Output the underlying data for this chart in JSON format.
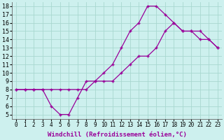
{
  "xlabel": "Windchill (Refroidissement éolien,°C)",
  "background_color": "#cdf0ee",
  "grid_color": "#a8d8d0",
  "line_color": "#990099",
  "marker_color": "#990099",
  "xlim": [
    -0.5,
    23.5
  ],
  "ylim": [
    4.5,
    18.5
  ],
  "xticks": [
    0,
    1,
    2,
    3,
    4,
    5,
    6,
    7,
    8,
    9,
    10,
    11,
    12,
    13,
    14,
    15,
    16,
    17,
    18,
    19,
    20,
    21,
    22,
    23
  ],
  "yticks": [
    5,
    6,
    7,
    8,
    9,
    10,
    11,
    12,
    13,
    14,
    15,
    16,
    17,
    18
  ],
  "line1_x": [
    0,
    1,
    2,
    3,
    4,
    5,
    6,
    7,
    8,
    9,
    10,
    11,
    12,
    13,
    14,
    15,
    16,
    17,
    18,
    19,
    20,
    21,
    22,
    23
  ],
  "line1_y": [
    8,
    8,
    8,
    8,
    6,
    5,
    5,
    7,
    9,
    9,
    10,
    11,
    13,
    15,
    16,
    18,
    18,
    17,
    16,
    15,
    15,
    14,
    14,
    13
  ],
  "line2_x": [
    0,
    1,
    2,
    3,
    4,
    5,
    6,
    7,
    8,
    9,
    10,
    11,
    12,
    13,
    14,
    15,
    16,
    17,
    18,
    19,
    20,
    21,
    22,
    23
  ],
  "line2_y": [
    8,
    8,
    8,
    8,
    8,
    8,
    8,
    8,
    8,
    9,
    9,
    9,
    10,
    11,
    12,
    12,
    13,
    15,
    16,
    15,
    15,
    15,
    14,
    13
  ],
  "font_size_label": 6.5,
  "font_size_tick": 5.5
}
